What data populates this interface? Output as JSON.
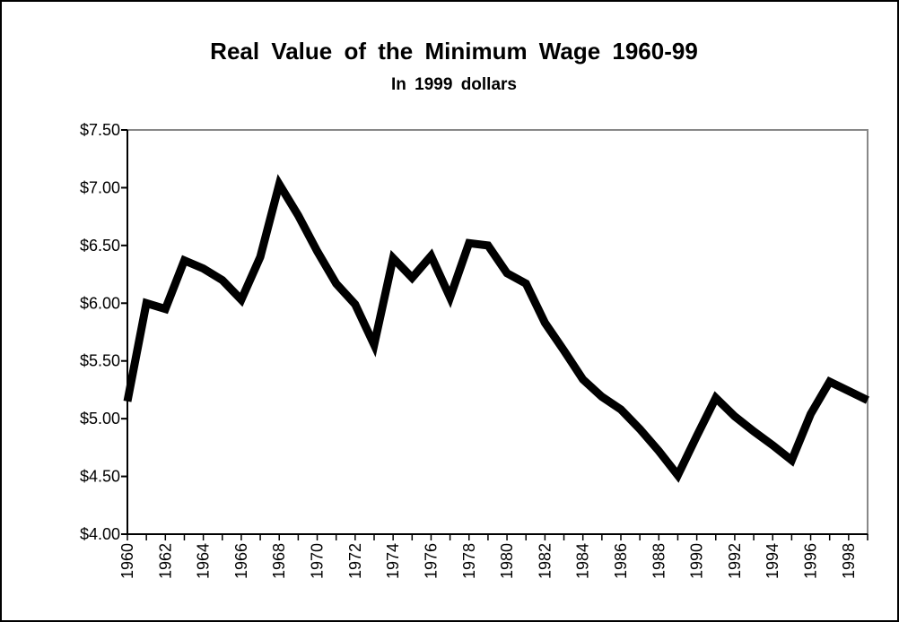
{
  "chart_data": {
    "type": "line",
    "title": "Real Value of the Minimum Wage 1960-99",
    "subtitle": "In 1999 dollars",
    "categories": [
      "1960",
      null,
      "1962",
      null,
      "1964",
      null,
      "1966",
      null,
      "1968",
      null,
      "1970",
      null,
      "1972",
      null,
      "1974",
      null,
      "1976",
      null,
      "1978",
      null,
      "1980",
      null,
      "1982",
      null,
      "1984",
      null,
      "1986",
      null,
      "1988",
      null,
      "1990",
      null,
      "1992",
      null,
      "1994",
      null,
      "1996",
      null,
      "1998",
      null
    ],
    "values": [
      5.15,
      6.0,
      5.95,
      6.37,
      6.3,
      6.2,
      6.03,
      6.4,
      7.03,
      6.76,
      6.45,
      6.17,
      5.99,
      5.64,
      6.39,
      6.22,
      6.41,
      6.05,
      6.52,
      6.5,
      6.26,
      6.17,
      5.83,
      5.59,
      5.34,
      5.19,
      5.08,
      4.91,
      4.72,
      4.51,
      4.85,
      5.18,
      5.02,
      4.89,
      4.77,
      4.64,
      5.04,
      5.32,
      5.24,
      5.16
    ],
    "color": "#000000",
    "ylim": [
      4,
      7.5
    ],
    "yticks": [
      {
        "value": 4,
        "label": "$4.00"
      },
      {
        "value": 4.5,
        "label": "$4.50"
      },
      {
        "value": 5,
        "label": "$5.00"
      },
      {
        "value": 5.5,
        "label": "$5.50"
      },
      {
        "value": 6,
        "label": "$6.00"
      },
      {
        "value": 6.5,
        "label": "$6.50"
      },
      {
        "value": 7,
        "label": "$7.00"
      },
      {
        "value": 7.5,
        "label": "$7.50"
      }
    ],
    "grid": false
  }
}
